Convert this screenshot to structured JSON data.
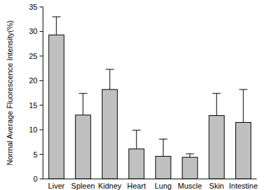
{
  "chart_data": {
    "type": "bar",
    "y_label": "Normal Average Fluorescence Intensity(%)",
    "categories": [
      "Liver",
      "Spleen",
      "Kidney",
      "Heart",
      "Lung",
      "Muscle",
      "Skin",
      "Intestine"
    ],
    "values": [
      29.3,
      13.0,
      18.2,
      6.1,
      4.6,
      4.4,
      12.9,
      11.5
    ],
    "errors": [
      3.7,
      4.4,
      4.1,
      3.8,
      3.5,
      0.7,
      4.5,
      6.7
    ],
    "color": "#c0c0c0",
    "ylim": [
      0,
      35
    ],
    "yticks": [
      0,
      5,
      10,
      15,
      20,
      25,
      30,
      35
    ],
    "grid": false
  }
}
